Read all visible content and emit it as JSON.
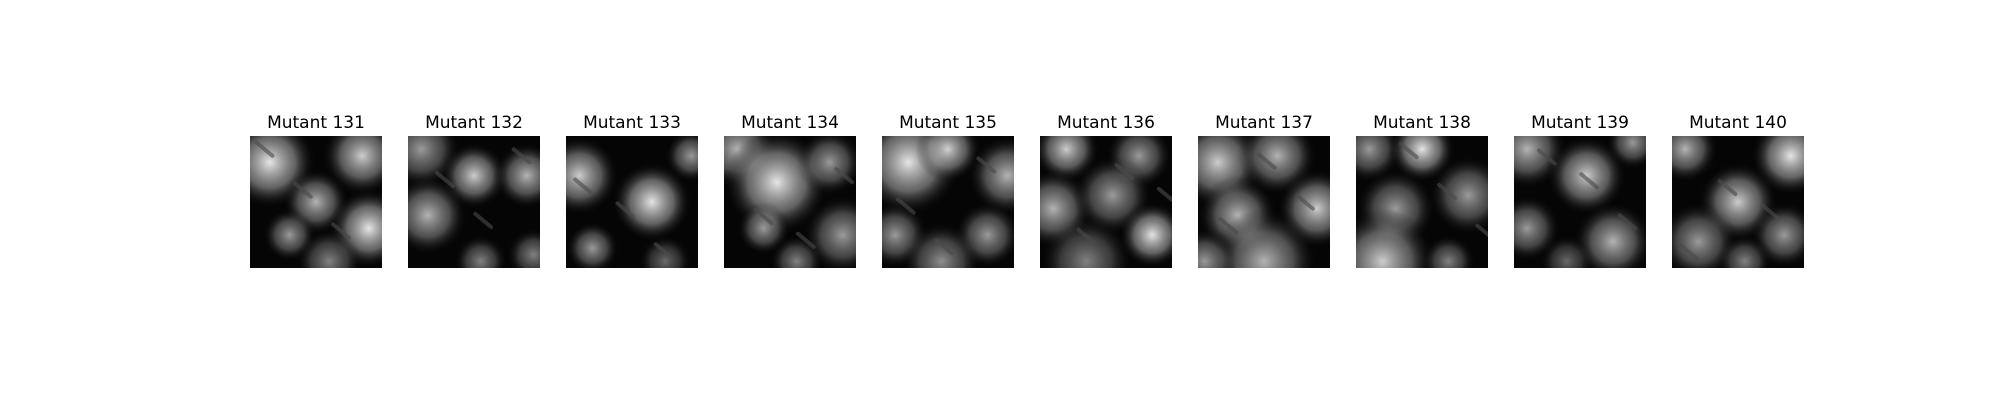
{
  "panels": [
    {
      "title": "Mutant 131"
    },
    {
      "title": "Mutant 132"
    },
    {
      "title": "Mutant 133"
    },
    {
      "title": "Mutant 134"
    },
    {
      "title": "Mutant 135"
    },
    {
      "title": "Mutant 136"
    },
    {
      "title": "Mutant 137"
    },
    {
      "title": "Mutant 138"
    },
    {
      "title": "Mutant 139"
    },
    {
      "title": "Mutant 140"
    }
  ]
}
